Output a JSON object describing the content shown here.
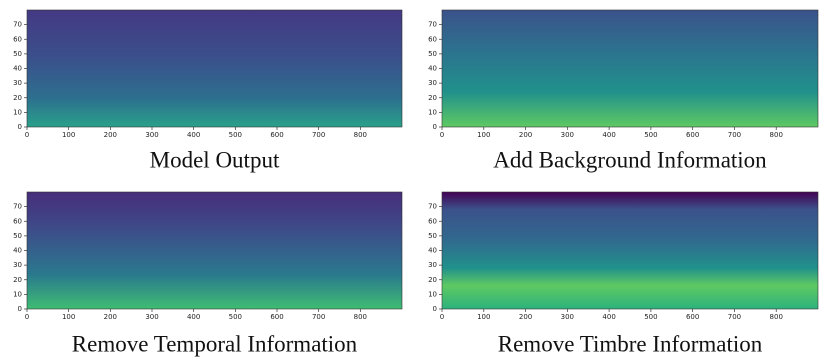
{
  "chart_data": [
    {
      "type": "heatmap",
      "title": "Model Output",
      "xlim": [
        0,
        900
      ],
      "ylim": [
        0,
        80
      ],
      "xticks": [
        0,
        100,
        200,
        300,
        400,
        500,
        600,
        700,
        800
      ],
      "yticks": [
        0,
        10,
        20,
        30,
        40,
        50,
        60,
        70
      ]
    },
    {
      "type": "heatmap",
      "title": "Add Background Information",
      "xlim": [
        0,
        900
      ],
      "ylim": [
        0,
        80
      ],
      "xticks": [
        0,
        100,
        200,
        300,
        400,
        500,
        600,
        700,
        800
      ],
      "yticks": [
        0,
        10,
        20,
        30,
        40,
        50,
        60,
        70
      ]
    },
    {
      "type": "heatmap",
      "title": "Remove Temporal Information",
      "xlim": [
        0,
        900
      ],
      "ylim": [
        0,
        80
      ],
      "xticks": [
        0,
        100,
        200,
        300,
        400,
        500,
        600,
        700,
        800
      ],
      "yticks": [
        0,
        10,
        20,
        30,
        40,
        50,
        60,
        70
      ]
    },
    {
      "type": "heatmap",
      "title": "Remove Timbre Information",
      "xlim": [
        0,
        900
      ],
      "ylim": [
        0,
        80
      ],
      "xticks": [
        0,
        100,
        200,
        300,
        400,
        500,
        600,
        700,
        800
      ],
      "yticks": [
        0,
        10,
        20,
        30,
        40,
        50,
        60,
        70
      ]
    }
  ]
}
